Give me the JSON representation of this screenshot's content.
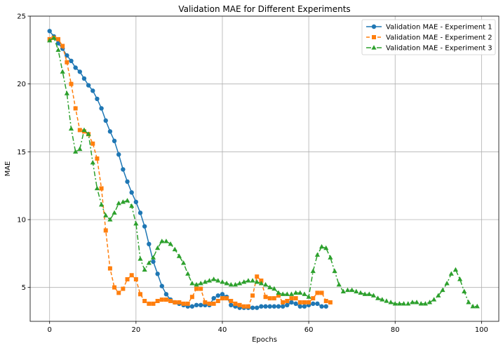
{
  "chart_data": {
    "type": "line",
    "title": "Validation MAE for Different Experiments",
    "xlabel": "Epochs",
    "ylabel": "MAE",
    "xlim": [
      -4.5,
      104
    ],
    "ylim": [
      2.5,
      25
    ],
    "xticks": [
      0,
      20,
      40,
      60,
      80,
      100
    ],
    "yticks": [
      5,
      10,
      15,
      20,
      25
    ],
    "grid": true,
    "legend_position": "top-right",
    "series": [
      {
        "name": "Validation MAE - Experiment 1",
        "color": "#1f77b4",
        "marker": "circle",
        "linestyle": "solid",
        "x": [
          0,
          1,
          2,
          3,
          4,
          5,
          6,
          7,
          8,
          9,
          10,
          11,
          12,
          13,
          14,
          15,
          16,
          17,
          18,
          19,
          20,
          21,
          22,
          23,
          24,
          25,
          26,
          27,
          28,
          29,
          30,
          31,
          32,
          33,
          34,
          35,
          36,
          37,
          38,
          39,
          40,
          41,
          42,
          43,
          44,
          45,
          46,
          47,
          48,
          49,
          50,
          51,
          52,
          53,
          54,
          55,
          56,
          57,
          58,
          59,
          60,
          61,
          62,
          63,
          64
        ],
        "y": [
          23.9,
          23.5,
          23.0,
          22.6,
          22.1,
          21.7,
          21.2,
          20.9,
          20.4,
          19.9,
          19.5,
          18.9,
          18.2,
          17.3,
          16.5,
          15.8,
          14.8,
          13.7,
          12.8,
          12.0,
          11.3,
          10.5,
          9.5,
          8.2,
          6.9,
          6.0,
          5.1,
          4.5,
          4.1,
          3.9,
          3.8,
          3.7,
          3.6,
          3.6,
          3.7,
          3.7,
          3.7,
          3.7,
          4.2,
          4.4,
          4.5,
          4.3,
          3.7,
          3.6,
          3.5,
          3.5,
          3.5,
          3.5,
          3.5,
          3.6,
          3.6,
          3.6,
          3.6,
          3.6,
          3.6,
          3.7,
          3.9,
          3.8,
          3.6,
          3.6,
          3.7,
          3.8,
          3.8,
          3.6,
          3.6
        ]
      },
      {
        "name": "Validation MAE - Experiment 2",
        "color": "#ff7f0e",
        "marker": "square",
        "linestyle": "dashed",
        "x": [
          0,
          1,
          2,
          3,
          4,
          5,
          6,
          7,
          8,
          9,
          10,
          11,
          12,
          13,
          14,
          15,
          16,
          17,
          18,
          19,
          20,
          21,
          22,
          23,
          24,
          25,
          26,
          27,
          28,
          29,
          30,
          31,
          32,
          33,
          34,
          35,
          36,
          37,
          38,
          39,
          40,
          41,
          42,
          43,
          44,
          45,
          46,
          47,
          48,
          49,
          50,
          51,
          52,
          53,
          54,
          55,
          56,
          57,
          58,
          59,
          60,
          61,
          62,
          63,
          64,
          65
        ],
        "y": [
          23.3,
          23.4,
          23.3,
          22.8,
          21.6,
          20.0,
          18.2,
          16.6,
          16.5,
          16.3,
          15.6,
          14.5,
          12.3,
          9.2,
          6.4,
          5.0,
          4.6,
          4.9,
          5.6,
          5.9,
          5.6,
          4.5,
          4.0,
          3.8,
          3.8,
          4.0,
          4.1,
          4.1,
          4.0,
          3.9,
          3.9,
          3.8,
          3.8,
          4.3,
          4.9,
          4.9,
          3.9,
          3.8,
          3.8,
          4.0,
          4.2,
          4.2,
          4.0,
          3.8,
          3.7,
          3.6,
          3.6,
          4.4,
          5.8,
          5.5,
          4.3,
          4.2,
          4.2,
          4.4,
          3.9,
          4.0,
          4.2,
          4.2,
          3.9,
          3.9,
          3.9,
          4.2,
          4.6,
          4.6,
          4.0,
          3.9
        ]
      },
      {
        "name": "Validation MAE - Experiment 3",
        "color": "#2ca02c",
        "marker": "triangle",
        "linestyle": "dashdot",
        "x": [
          0,
          1,
          2,
          3,
          4,
          5,
          6,
          7,
          8,
          9,
          10,
          11,
          12,
          13,
          14,
          15,
          16,
          17,
          18,
          19,
          20,
          21,
          22,
          23,
          24,
          25,
          26,
          27,
          28,
          29,
          30,
          31,
          32,
          33,
          34,
          35,
          36,
          37,
          38,
          39,
          40,
          41,
          42,
          43,
          44,
          45,
          46,
          47,
          48,
          49,
          50,
          51,
          52,
          53,
          54,
          55,
          56,
          57,
          58,
          59,
          60,
          61,
          62,
          63,
          64,
          65,
          66,
          67,
          68,
          69,
          70,
          71,
          72,
          73,
          74,
          75,
          76,
          77,
          78,
          79,
          80,
          81,
          82,
          83,
          84,
          85,
          86,
          87,
          88,
          89,
          90,
          91,
          92,
          93,
          94,
          95,
          96,
          97,
          98,
          99
        ],
        "y": [
          23.2,
          23.4,
          22.5,
          20.9,
          19.3,
          16.7,
          15.0,
          15.2,
          16.6,
          16.3,
          14.2,
          12.3,
          11.1,
          10.3,
          10.0,
          10.5,
          11.2,
          11.3,
          11.4,
          11.0,
          9.7,
          7.1,
          6.3,
          6.8,
          7.2,
          7.9,
          8.4,
          8.4,
          8.2,
          7.8,
          7.3,
          6.8,
          6.0,
          5.3,
          5.2,
          5.3,
          5.4,
          5.5,
          5.6,
          5.5,
          5.4,
          5.3,
          5.2,
          5.2,
          5.3,
          5.4,
          5.5,
          5.5,
          5.4,
          5.3,
          5.2,
          5.0,
          4.9,
          4.6,
          4.5,
          4.5,
          4.5,
          4.6,
          4.6,
          4.5,
          4.3,
          6.2,
          7.4,
          8.0,
          7.9,
          7.2,
          6.2,
          5.2,
          4.7,
          4.8,
          4.8,
          4.7,
          4.6,
          4.5,
          4.5,
          4.4,
          4.2,
          4.1,
          4.0,
          3.9,
          3.8,
          3.8,
          3.8,
          3.8,
          3.9,
          3.9,
          3.8,
          3.8,
          3.9,
          4.1,
          4.4,
          4.8,
          5.3,
          6.0,
          6.3,
          5.6,
          4.7,
          3.9,
          3.6,
          3.6
        ]
      }
    ]
  }
}
